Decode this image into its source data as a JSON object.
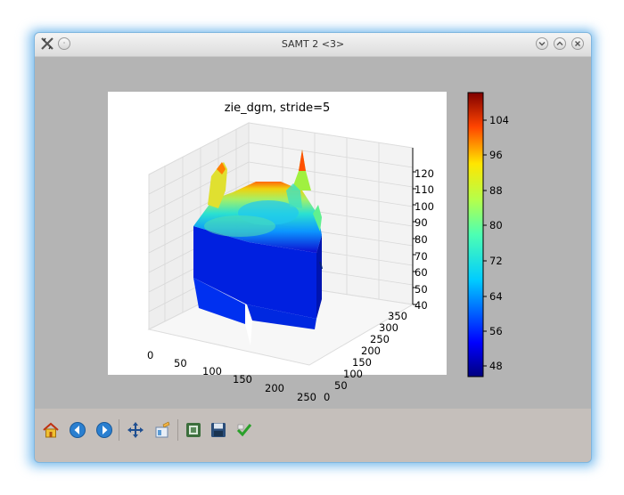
{
  "window": {
    "title": "SAMT 2 <3>"
  },
  "figure": {
    "title": "zie_dgm,  stride=5"
  },
  "chart_data": {
    "type": "surface3d",
    "title": "zie_dgm,  stride=5",
    "x_ticks": [
      "0",
      "50",
      "100",
      "150",
      "200",
      "250"
    ],
    "y_ticks": [
      "0",
      "50",
      "100",
      "150",
      "200",
      "250",
      "300",
      "350"
    ],
    "z_ticks": [
      "40",
      "50",
      "60",
      "70",
      "80",
      "90",
      "100",
      "110",
      "120"
    ],
    "xlim": [
      0,
      250
    ],
    "ylim": [
      0,
      350
    ],
    "zlim": [
      40,
      120
    ],
    "colorbar": {
      "colormap": "jet",
      "ticks": [
        "48",
        "56",
        "64",
        "72",
        "80",
        "88",
        "96",
        "104"
      ],
      "range": [
        46,
        110
      ]
    },
    "grid": true
  },
  "toolbar": {
    "tools": [
      "home-icon",
      "back-icon",
      "forward-icon",
      "pan-icon",
      "subplots-icon",
      "configure-icon",
      "save-icon",
      "edit-icon"
    ]
  }
}
